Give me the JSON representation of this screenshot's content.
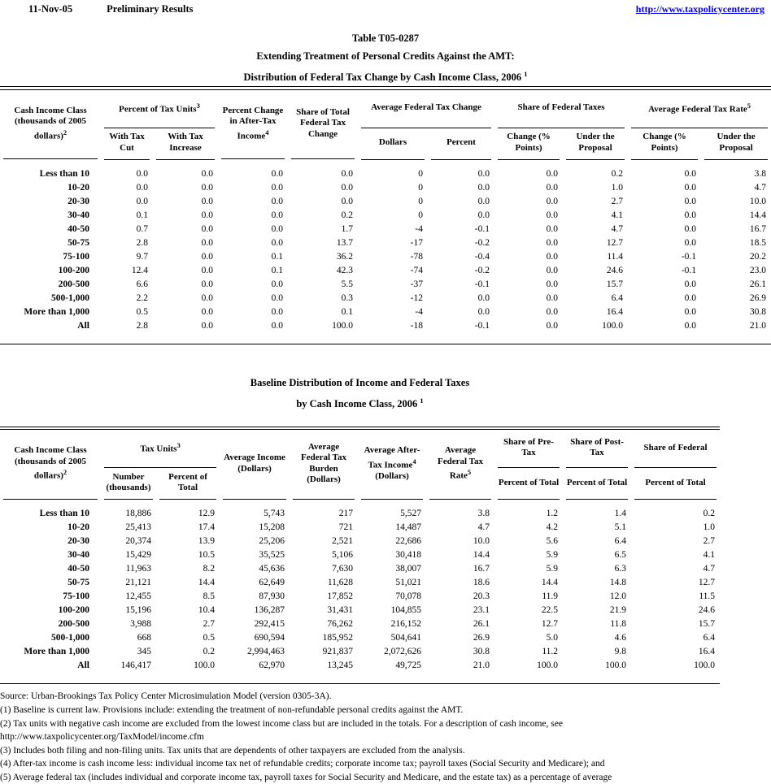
{
  "header": {
    "date": "11-Nov-05",
    "status": "Preliminary Results",
    "link": "http://www.taxpolicycenter.org"
  },
  "title": {
    "line1": "Table T05-0287",
    "line2": "Extending Treatment of Personal Credits Against the AMT:",
    "line3": "Distribution of Federal Tax Change by Cash Income Class, 2006",
    "footnote_ref": "1"
  },
  "table1": {
    "head": {
      "income_class": "Cash Income Class (thousands of 2005 dollars)",
      "income_class_sup": "2",
      "pct_tax_units": "Percent of Tax Units",
      "pct_tax_units_sup": "3",
      "with_tax_cut": "With Tax Cut",
      "with_tax_increase": "With Tax Increase",
      "pct_change_ati": "Percent Change in After-Tax Income",
      "pct_change_ati_sup": "4",
      "share_total_change": "Share of Total Federal Tax Change",
      "avg_fed_tax_change": "Average Federal Tax Change",
      "dollars": "Dollars",
      "percent": "Percent",
      "share_fed_taxes": "Share of Federal Taxes",
      "change_pts_a": "Change (% Points)",
      "under_proposal_a": "Under the Proposal",
      "avg_fed_tax_rate": "Average Federal Tax Rate",
      "avg_fed_tax_rate_sup": "5",
      "change_pts_b": "Change (% Points)",
      "under_proposal_b": "Under the Proposal"
    },
    "rows": [
      {
        "label": "Less than 10",
        "values": [
          "0.0",
          "0.0",
          "0.0",
          "0.0",
          "0",
          "0.0",
          "0.0",
          "0.2",
          "0.0",
          "3.8"
        ]
      },
      {
        "label": "10-20",
        "values": [
          "0.0",
          "0.0",
          "0.0",
          "0.0",
          "0",
          "0.0",
          "0.0",
          "1.0",
          "0.0",
          "4.7"
        ]
      },
      {
        "label": "20-30",
        "values": [
          "0.0",
          "0.0",
          "0.0",
          "0.0",
          "0",
          "0.0",
          "0.0",
          "2.7",
          "0.0",
          "10.0"
        ]
      },
      {
        "label": "30-40",
        "values": [
          "0.1",
          "0.0",
          "0.0",
          "0.2",
          "0",
          "0.0",
          "0.0",
          "4.1",
          "0.0",
          "14.4"
        ]
      },
      {
        "label": "40-50",
        "values": [
          "0.7",
          "0.0",
          "0.0",
          "1.7",
          "-4",
          "-0.1",
          "0.0",
          "4.7",
          "0.0",
          "16.7"
        ]
      },
      {
        "label": "50-75",
        "values": [
          "2.8",
          "0.0",
          "0.0",
          "13.7",
          "-17",
          "-0.2",
          "0.0",
          "12.7",
          "0.0",
          "18.5"
        ]
      },
      {
        "label": "75-100",
        "values": [
          "9.7",
          "0.0",
          "0.1",
          "36.2",
          "-78",
          "-0.4",
          "0.0",
          "11.4",
          "-0.1",
          "20.2"
        ]
      },
      {
        "label": "100-200",
        "values": [
          "12.4",
          "0.0",
          "0.1",
          "42.3",
          "-74",
          "-0.2",
          "0.0",
          "24.6",
          "-0.1",
          "23.0"
        ]
      },
      {
        "label": "200-500",
        "values": [
          "6.6",
          "0.0",
          "0.0",
          "5.5",
          "-37",
          "-0.1",
          "0.0",
          "15.7",
          "0.0",
          "26.1"
        ]
      },
      {
        "label": "500-1,000",
        "values": [
          "2.2",
          "0.0",
          "0.0",
          "0.3",
          "-12",
          "0.0",
          "0.0",
          "6.4",
          "0.0",
          "26.9"
        ]
      },
      {
        "label": "More than 1,000",
        "values": [
          "0.5",
          "0.0",
          "0.0",
          "0.1",
          "-4",
          "0.0",
          "0.0",
          "16.4",
          "0.0",
          "30.8"
        ]
      },
      {
        "label": "All",
        "values": [
          "2.8",
          "0.0",
          "0.0",
          "100.0",
          "-18",
          "-0.1",
          "0.0",
          "100.0",
          "0.0",
          "21.0"
        ]
      }
    ]
  },
  "table2": {
    "title_line1": "Baseline Distribution of Income and Federal Taxes",
    "title_line2": "by Cash Income Class, 2006",
    "title_footnote_ref": "1",
    "head": {
      "income_class": "Cash Income Class (thousands of 2005 dollars)",
      "income_class_sup": "2",
      "tax_units": "Tax Units",
      "tax_units_sup": "3",
      "number_thousands": "Number (thousands)",
      "percent_of_total": "Percent of Total",
      "avg_income": "Average Income (Dollars)",
      "avg_fed_tax_burden": "Average Federal Tax Burden (Dollars)",
      "avg_after_tax_pre": "Average After-Tax Income",
      "avg_after_tax_sup": "4",
      "avg_after_tax_post": "(Dollars)",
      "avg_fed_tax_rate": "Average Federal Tax Rate",
      "avg_fed_tax_rate_sup": "5",
      "share_pre_tax": "Share of Pre-Tax",
      "share_pre_tax_sub": "Percent of Total",
      "share_post_tax": "Share of Post-Tax",
      "share_post_tax_sub": "Percent of Total",
      "share_federal": "Share of Federal",
      "share_federal_sub": "Percent of Total"
    },
    "rows": [
      {
        "label": "Less than 10",
        "values": [
          "18,886",
          "12.9",
          "5,743",
          "217",
          "5,527",
          "3.8",
          "1.2",
          "1.4",
          "0.2"
        ]
      },
      {
        "label": "10-20",
        "values": [
          "25,413",
          "17.4",
          "15,208",
          "721",
          "14,487",
          "4.7",
          "4.2",
          "5.1",
          "1.0"
        ]
      },
      {
        "label": "20-30",
        "values": [
          "20,374",
          "13.9",
          "25,206",
          "2,521",
          "22,686",
          "10.0",
          "5.6",
          "6.4",
          "2.7"
        ]
      },
      {
        "label": "30-40",
        "values": [
          "15,429",
          "10.5",
          "35,525",
          "5,106",
          "30,418",
          "14.4",
          "5.9",
          "6.5",
          "4.1"
        ]
      },
      {
        "label": "40-50",
        "values": [
          "11,963",
          "8.2",
          "45,636",
          "7,630",
          "38,007",
          "16.7",
          "5.9",
          "6.3",
          "4.7"
        ]
      },
      {
        "label": "50-75",
        "values": [
          "21,121",
          "14.4",
          "62,649",
          "11,628",
          "51,021",
          "18.6",
          "14.4",
          "14.8",
          "12.7"
        ]
      },
      {
        "label": "75-100",
        "values": [
          "12,455",
          "8.5",
          "87,930",
          "17,852",
          "70,078",
          "20.3",
          "11.9",
          "12.0",
          "11.5"
        ]
      },
      {
        "label": "100-200",
        "values": [
          "15,196",
          "10.4",
          "136,287",
          "31,431",
          "104,855",
          "23.1",
          "22.5",
          "21.9",
          "24.6"
        ]
      },
      {
        "label": "200-500",
        "values": [
          "3,988",
          "2.7",
          "292,415",
          "76,262",
          "216,152",
          "26.1",
          "12.7",
          "11.8",
          "15.7"
        ]
      },
      {
        "label": "500-1,000",
        "values": [
          "668",
          "0.5",
          "690,594",
          "185,952",
          "504,641",
          "26.9",
          "5.0",
          "4.6",
          "6.4"
        ]
      },
      {
        "label": "More than 1,000",
        "values": [
          "345",
          "0.2",
          "2,994,463",
          "921,837",
          "2,072,626",
          "30.8",
          "11.2",
          "9.8",
          "16.4"
        ]
      },
      {
        "label": "All",
        "values": [
          "146,417",
          "100.0",
          "62,970",
          "13,245",
          "49,725",
          "21.0",
          "100.0",
          "100.0",
          "100.0"
        ]
      }
    ]
  },
  "footnotes": {
    "lines": [
      "Source: Urban-Brookings Tax Policy Center Microsimulation Model (version 0305-3A).",
      "(1) Baseline is current law. Provisions include: extending the treatment of non-refundable personal credits against the AMT.",
      "(2) Tax units with negative cash income are excluded from the lowest income class but are included in the totals. For a description of cash income, see",
      "http://www.taxpolicycenter.org/TaxModel/income.cfm",
      "(3) Includes both filing and non-filing units.  Tax units that are dependents of other taxpayers are excluded from the analysis.",
      "(4) After-tax income is cash income less: individual income tax net of refundable credits; corporate income tax; payroll taxes (Social Security and Medicare); and",
      "(5) Average federal tax (includes individual and corporate income tax, payroll taxes for Social Security and Medicare, and the estate tax) as a percentage of average"
    ]
  }
}
